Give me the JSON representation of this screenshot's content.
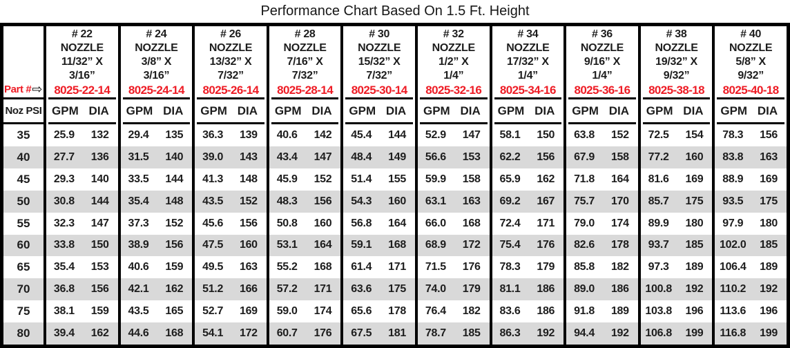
{
  "title": "Performance Chart Based On 1.5 Ft. Height",
  "colors": {
    "accent_red": "#ee1c25",
    "stripe_gray": "#d9d9d9"
  },
  "table": {
    "part_label": "Part #",
    "part_arrow_icon": "⇨",
    "psi_header": "Noz PSI",
    "gpm_header": "GPM",
    "dia_header": "DIA",
    "nozzles": [
      {
        "number": "# 22",
        "name": "NOZZLE",
        "size1": "11/32” X",
        "size2": "3/16”",
        "part": "8025-22-14"
      },
      {
        "number": "# 24",
        "name": "NOZZLE",
        "size1": "3/8” X",
        "size2": "3/16”",
        "part": "8025-24-14"
      },
      {
        "number": "# 26",
        "name": "NOZZLE",
        "size1": "13/32” X",
        "size2": "7/32”",
        "part": "8025-26-14"
      },
      {
        "number": "# 28",
        "name": "NOZZLE",
        "size1": "7/16” X",
        "size2": "7/32”",
        "part": "8025-28-14"
      },
      {
        "number": "# 30",
        "name": "NOZZLE",
        "size1": "15/32” X",
        "size2": "7/32”",
        "part": "8025-30-14"
      },
      {
        "number": "# 32",
        "name": "NOZZLE",
        "size1": "1/2” X",
        "size2": "1/4”",
        "part": "8025-32-16"
      },
      {
        "number": "# 34",
        "name": "NOZZLE",
        "size1": "17/32” X",
        "size2": "1/4”",
        "part": "8025-34-16"
      },
      {
        "number": "# 36",
        "name": "NOZZLE",
        "size1": "9/16” X",
        "size2": "1/4”",
        "part": "8025-36-16"
      },
      {
        "number": "# 38",
        "name": "NOZZLE",
        "size1": "19/32” X",
        "size2": "9/32”",
        "part": "8025-38-18"
      },
      {
        "number": "# 40",
        "name": "NOZZLE",
        "size1": "5/8” X",
        "size2": "9/32”",
        "part": "8025-40-18"
      }
    ],
    "rows": [
      {
        "psi": "35",
        "values": [
          [
            "25.9",
            "132"
          ],
          [
            "29.4",
            "135"
          ],
          [
            "36.3",
            "139"
          ],
          [
            "40.6",
            "142"
          ],
          [
            "45.4",
            "144"
          ],
          [
            "52.9",
            "147"
          ],
          [
            "58.1",
            "150"
          ],
          [
            "63.8",
            "152"
          ],
          [
            "72.5",
            "154"
          ],
          [
            "78.3",
            "156"
          ]
        ]
      },
      {
        "psi": "40",
        "values": [
          [
            "27.7",
            "136"
          ],
          [
            "31.5",
            "140"
          ],
          [
            "39.0",
            "143"
          ],
          [
            "43.4",
            "147"
          ],
          [
            "48.4",
            "149"
          ],
          [
            "56.6",
            "153"
          ],
          [
            "62.2",
            "156"
          ],
          [
            "67.9",
            "158"
          ],
          [
            "77.2",
            "160"
          ],
          [
            "83.8",
            "163"
          ]
        ]
      },
      {
        "psi": "45",
        "values": [
          [
            "29.3",
            "140"
          ],
          [
            "33.5",
            "144"
          ],
          [
            "41.3",
            "148"
          ],
          [
            "45.9",
            "152"
          ],
          [
            "51.4",
            "155"
          ],
          [
            "59.9",
            "158"
          ],
          [
            "65.9",
            "162"
          ],
          [
            "71.8",
            "164"
          ],
          [
            "81.6",
            "169"
          ],
          [
            "88.9",
            "169"
          ]
        ]
      },
      {
        "psi": "50",
        "values": [
          [
            "30.8",
            "144"
          ],
          [
            "35.4",
            "148"
          ],
          [
            "43.5",
            "152"
          ],
          [
            "48.3",
            "156"
          ],
          [
            "54.3",
            "160"
          ],
          [
            "63.1",
            "163"
          ],
          [
            "69.2",
            "167"
          ],
          [
            "75.7",
            "170"
          ],
          [
            "85.7",
            "175"
          ],
          [
            "93.5",
            "175"
          ]
        ]
      },
      {
        "psi": "55",
        "values": [
          [
            "32.3",
            "147"
          ],
          [
            "37.3",
            "152"
          ],
          [
            "45.6",
            "156"
          ],
          [
            "50.8",
            "160"
          ],
          [
            "56.8",
            "164"
          ],
          [
            "66.0",
            "168"
          ],
          [
            "72.4",
            "171"
          ],
          [
            "79.0",
            "174"
          ],
          [
            "89.9",
            "180"
          ],
          [
            "97.9",
            "180"
          ]
        ]
      },
      {
        "psi": "60",
        "values": [
          [
            "33.8",
            "150"
          ],
          [
            "38.9",
            "156"
          ],
          [
            "47.5",
            "160"
          ],
          [
            "53.1",
            "164"
          ],
          [
            "59.1",
            "168"
          ],
          [
            "68.9",
            "172"
          ],
          [
            "75.4",
            "176"
          ],
          [
            "82.6",
            "178"
          ],
          [
            "93.7",
            "185"
          ],
          [
            "102.0",
            "185"
          ]
        ]
      },
      {
        "psi": "65",
        "values": [
          [
            "35.4",
            "153"
          ],
          [
            "40.6",
            "159"
          ],
          [
            "49.5",
            "163"
          ],
          [
            "55.2",
            "168"
          ],
          [
            "61.4",
            "171"
          ],
          [
            "71.5",
            "176"
          ],
          [
            "78.3",
            "179"
          ],
          [
            "85.8",
            "182"
          ],
          [
            "97.3",
            "189"
          ],
          [
            "106.4",
            "189"
          ]
        ]
      },
      {
        "psi": "70",
        "values": [
          [
            "36.8",
            "156"
          ],
          [
            "42.1",
            "162"
          ],
          [
            "51.2",
            "166"
          ],
          [
            "57.2",
            "171"
          ],
          [
            "63.6",
            "175"
          ],
          [
            "74.0",
            "179"
          ],
          [
            "81.1",
            "186"
          ],
          [
            "89.0",
            "186"
          ],
          [
            "100.8",
            "192"
          ],
          [
            "110.2",
            "192"
          ]
        ]
      },
      {
        "psi": "75",
        "values": [
          [
            "38.1",
            "159"
          ],
          [
            "43.5",
            "165"
          ],
          [
            "52.7",
            "169"
          ],
          [
            "59.0",
            "174"
          ],
          [
            "65.6",
            "178"
          ],
          [
            "76.4",
            "182"
          ],
          [
            "83.6",
            "186"
          ],
          [
            "91.8",
            "189"
          ],
          [
            "103.8",
            "196"
          ],
          [
            "113.6",
            "196"
          ]
        ]
      },
      {
        "psi": "80",
        "values": [
          [
            "39.4",
            "162"
          ],
          [
            "44.6",
            "168"
          ],
          [
            "54.1",
            "172"
          ],
          [
            "60.7",
            "176"
          ],
          [
            "67.5",
            "181"
          ],
          [
            "78.7",
            "185"
          ],
          [
            "86.3",
            "192"
          ],
          [
            "94.4",
            "192"
          ],
          [
            "106.8",
            "199"
          ],
          [
            "116.8",
            "199"
          ]
        ]
      }
    ]
  }
}
